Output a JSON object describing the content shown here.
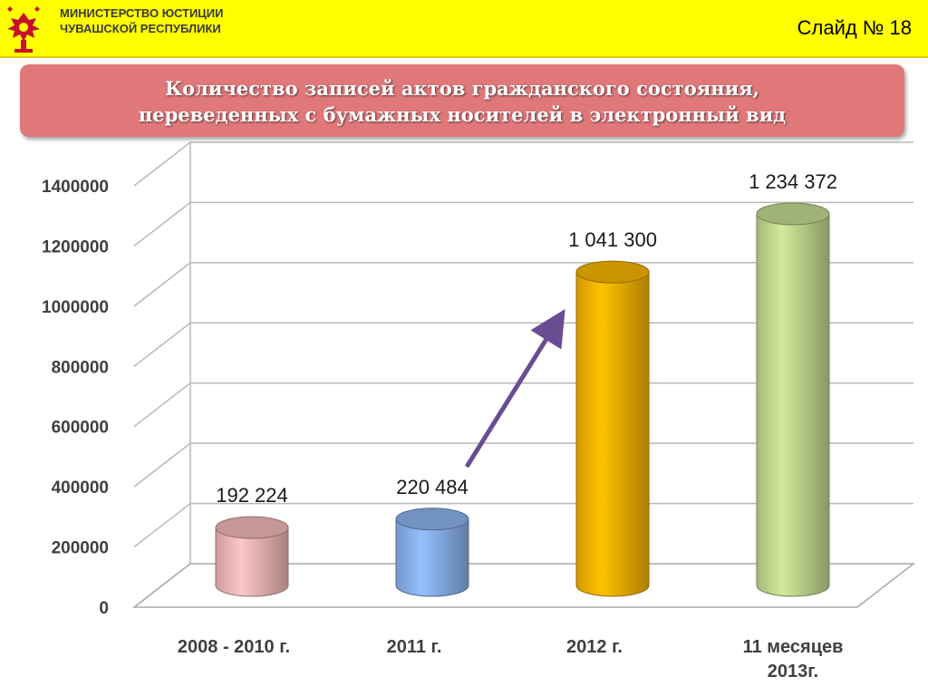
{
  "header": {
    "ministry": "МИНИСТЕРСТВО ЮСТИЦИИ\nЧУВАШСКОЙ РЕСПУБЛИКИ",
    "slide": "Слайд № 18"
  },
  "title": "Количество записей актов гражданского состояния,\nпереведенных с бумажных носителей в электронный вид",
  "colors": {
    "header": "#ffff00",
    "title_box": "#e0787a"
  },
  "chart_data": {
    "type": "bar",
    "style": "3d-cylinder",
    "categories": [
      "2008 - 2010 г.",
      "2011 г.",
      "2012 г.",
      "11 месяцев\n2013г."
    ],
    "values": [
      192224,
      220484,
      1041300,
      1234372
    ],
    "value_labels": [
      "192 224",
      "220 484",
      "1 041 300",
      "1 234 372"
    ],
    "bar_colors": [
      "#f2b8b8",
      "#8ab2ec",
      "#f7b400",
      "#c3d98f"
    ],
    "ylim": [
      0,
      1400000
    ],
    "yticks": [
      "0",
      "200000",
      "400000",
      "600000",
      "800000",
      "1000000",
      "1200000",
      "1400000"
    ],
    "grid": true,
    "annotation": "arrow from 2011 г. to 2012 г."
  }
}
